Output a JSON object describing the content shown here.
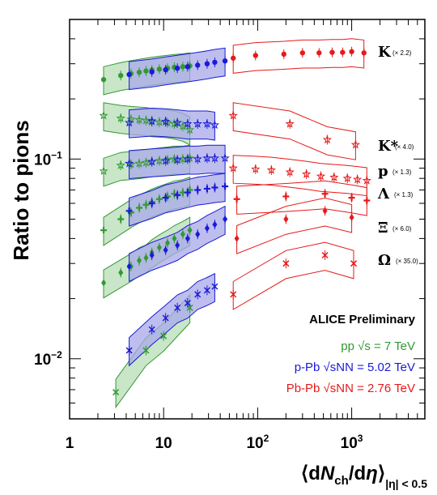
{
  "chart_data": {
    "type": "scatter",
    "title": "",
    "ylabel": "Ratio to pions",
    "xlabel": "⟨dNch/dη⟩|η| < 0.5",
    "xlabel_parts": {
      "open": "⟨d",
      "N": "N",
      "ch": "ch",
      "slash": "/d",
      "eta": "η",
      "close": "⟩",
      "sub": "|η| < 0.5"
    },
    "x_scale": "log",
    "y_scale": "log",
    "xlim": [
      1,
      6000
    ],
    "ylim": [
      0.005,
      0.5
    ],
    "x_ticks": [
      {
        "value": 1,
        "base": "1",
        "exp": ""
      },
      {
        "value": 10,
        "base": "10",
        "exp": ""
      },
      {
        "value": 100,
        "base": "10",
        "exp": "2"
      },
      {
        "value": 1000,
        "base": "10",
        "exp": "3"
      }
    ],
    "y_ticks": [
      {
        "value": 0.1,
        "base": "10",
        "exp": "−1"
      },
      {
        "value": 0.01,
        "base": "10",
        "exp": "−2"
      }
    ],
    "colors": {
      "pp": "#339933",
      "pPb": "#1a1ad9",
      "PbPb": "#e61a1a",
      "pp_fill": "#b7ddb7",
      "pPb_fill": "#a8a8e8"
    },
    "species": [
      {
        "label": "K",
        "scale": "(× 2.2)"
      },
      {
        "label": "K*",
        "scale": "(× 4.0)"
      },
      {
        "label": "p",
        "scale": "(× 1.3)"
      },
      {
        "label": "Λ",
        "scale": "(× 1.3)"
      },
      {
        "label": "Ξ",
        "scale": "(× 6.0)"
      },
      {
        "label": "Ω",
        "scale": "(× 35.0)"
      }
    ],
    "legend": {
      "title": "ALICE Preliminary",
      "entries": [
        {
          "system": "pp",
          "text": "pp √s = 7 TeV"
        },
        {
          "system": "pPb",
          "text": "p-Pb √sNN = 5.02 TeV"
        },
        {
          "system": "PbPb",
          "text": "Pb-Pb √sNN = 2.76 TeV"
        }
      ]
    },
    "series": [
      {
        "system": "pp",
        "species": "K",
        "marker": "circle",
        "x": [
          2.3,
          3.5,
          4.5,
          5.5,
          6.5,
          7.5,
          9,
          11,
          13,
          16,
          19
        ],
        "y": [
          0.25,
          0.262,
          0.268,
          0.272,
          0.276,
          0.279,
          0.282,
          0.285,
          0.288,
          0.29,
          0.293
        ]
      },
      {
        "system": "pPb",
        "species": "K",
        "marker": "circle",
        "x": [
          4.3,
          7.5,
          10.5,
          14,
          18,
          23,
          29,
          35,
          45
        ],
        "y": [
          0.265,
          0.273,
          0.28,
          0.285,
          0.29,
          0.295,
          0.3,
          0.305,
          0.31
        ]
      },
      {
        "system": "PbPb",
        "species": "K",
        "marker": "circle",
        "x": [
          55,
          95,
          190,
          300,
          450,
          620,
          800,
          1000,
          1350
        ],
        "y": [
          0.32,
          0.33,
          0.335,
          0.34,
          0.34,
          0.342,
          0.342,
          0.345,
          0.34
        ]
      },
      {
        "system": "pp",
        "species": "K*",
        "marker": "star",
        "x": [
          2.3,
          3.5,
          4.5,
          5.5,
          6.5,
          7.5,
          9,
          11,
          13,
          16,
          19
        ],
        "y": [
          0.165,
          0.16,
          0.158,
          0.157,
          0.156,
          0.154,
          0.153,
          0.152,
          0.15,
          0.146,
          0.14
        ]
      },
      {
        "system": "pPb",
        "species": "K*",
        "marker": "star",
        "x": [
          4.3,
          7.5,
          10.5,
          14,
          18,
          23,
          29,
          35
        ],
        "y": [
          0.152,
          0.155,
          0.154,
          0.152,
          0.15,
          0.15,
          0.15,
          0.148
        ]
      },
      {
        "system": "PbPb",
        "species": "K*",
        "marker": "star",
        "x": [
          55,
          220,
          550,
          1100
        ],
        "y": [
          0.165,
          0.15,
          0.125,
          0.118
        ]
      },
      {
        "system": "pp",
        "species": "p",
        "marker": "star",
        "x": [
          2.3,
          3.5,
          4.5,
          5.5,
          6.5,
          7.5,
          9,
          11,
          13,
          16,
          19
        ],
        "y": [
          0.087,
          0.093,
          0.094,
          0.095,
          0.096,
          0.097,
          0.098,
          0.099,
          0.1,
          0.1,
          0.101
        ]
      },
      {
        "system": "pPb",
        "species": "p",
        "marker": "star",
        "x": [
          4.3,
          7.5,
          10.5,
          14,
          18,
          23,
          29,
          35,
          45
        ],
        "y": [
          0.095,
          0.097,
          0.098,
          0.099,
          0.1,
          0.1,
          0.101,
          0.101,
          0.101
        ]
      },
      {
        "system": "PbPb",
        "species": "p",
        "marker": "star",
        "x": [
          55,
          95,
          140,
          220,
          330,
          470,
          650,
          900,
          1150,
          1450
        ],
        "y": [
          0.09,
          0.089,
          0.088,
          0.086,
          0.084,
          0.082,
          0.081,
          0.08,
          0.079,
          0.078
        ]
      },
      {
        "system": "pp",
        "species": "Λ",
        "marker": "plus",
        "x": [
          2.3,
          3.5,
          4.5,
          5.5,
          6.5,
          7.5,
          9,
          11,
          13,
          16,
          19
        ],
        "y": [
          0.044,
          0.05,
          0.054,
          0.057,
          0.059,
          0.061,
          0.063,
          0.065,
          0.067,
          0.068,
          0.07
        ]
      },
      {
        "system": "pPb",
        "species": "Λ",
        "marker": "plus",
        "x": [
          4.3,
          7.5,
          10.5,
          14,
          18,
          23,
          29,
          35,
          45
        ],
        "y": [
          0.055,
          0.06,
          0.064,
          0.066,
          0.068,
          0.07,
          0.071,
          0.072,
          0.073
        ]
      },
      {
        "system": "PbPb",
        "species": "Λ",
        "marker": "plus",
        "x": [
          60,
          200,
          520,
          1000,
          1450
        ],
        "y": [
          0.063,
          0.065,
          0.067,
          0.064,
          0.062
        ]
      },
      {
        "system": "pp",
        "species": "Ξ",
        "marker": "diamond",
        "x": [
          2.3,
          3.5,
          4.5,
          5.5,
          6.5,
          7.5,
          9,
          11,
          13,
          16,
          19
        ],
        "y": [
          0.024,
          0.027,
          0.029,
          0.031,
          0.032,
          0.034,
          0.036,
          0.038,
          0.04,
          0.042,
          0.044
        ]
      },
      {
        "system": "pPb",
        "species": "Ξ",
        "marker": "diamond",
        "x": [
          4.3,
          7.5,
          10.5,
          14,
          18,
          23,
          29,
          35,
          45
        ],
        "y": [
          0.029,
          0.033,
          0.035,
          0.037,
          0.04,
          0.042,
          0.045,
          0.047,
          0.05
        ]
      },
      {
        "system": "PbPb",
        "species": "Ξ",
        "marker": "diamond",
        "x": [
          60,
          200,
          520,
          1000
        ],
        "y": [
          0.04,
          0.05,
          0.055,
          0.051
        ]
      },
      {
        "system": "pp",
        "species": "Ω",
        "marker": "cross",
        "x": [
          3.1,
          6.5,
          10,
          19
        ],
        "y": [
          0.0068,
          0.011,
          0.013,
          0.018
        ]
      },
      {
        "system": "pPb",
        "species": "Ω",
        "marker": "cross",
        "x": [
          4.3,
          7.5,
          10.5,
          14,
          18,
          23,
          29,
          35
        ],
        "y": [
          0.011,
          0.014,
          0.016,
          0.018,
          0.019,
          0.021,
          0.022,
          0.023
        ]
      },
      {
        "system": "PbPb",
        "species": "Ω",
        "marker": "cross",
        "x": [
          55,
          200,
          520,
          1050
        ],
        "y": [
          0.021,
          0.03,
          0.033,
          0.03
        ]
      }
    ]
  }
}
